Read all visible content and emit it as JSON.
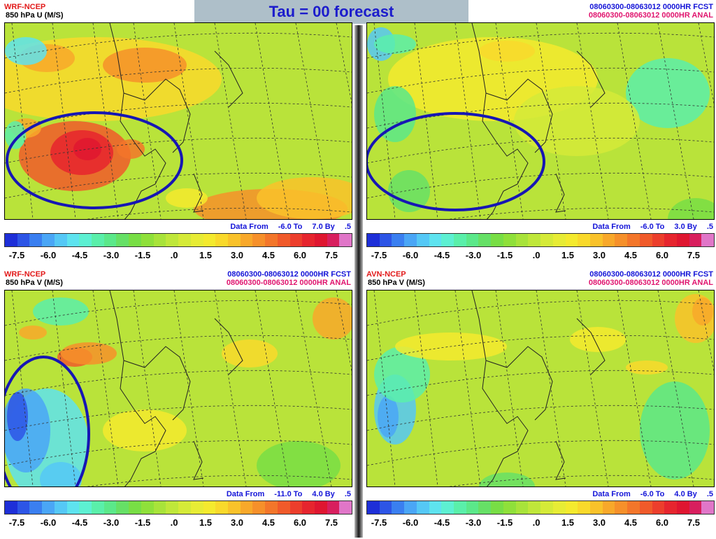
{
  "title": "Tau = 00  forecast",
  "panels": [
    {
      "model": "WRF-NCEP",
      "variable": "850 hPa U (M/S)",
      "forecast_label": "",
      "analysis_label": "",
      "range": {
        "from_label": "Data From",
        "from": "-6.0 To",
        "to": "7.0 By",
        "step": ".5"
      }
    },
    {
      "model": "",
      "variable": "",
      "forecast_label": "08060300-08063012 0000HR FCST",
      "analysis_label": "08060300-08063012 0000HR ANAL",
      "range": {
        "from_label": "Data From",
        "from": "-6.0 To",
        "to": "3.0 By",
        "step": ".5"
      }
    },
    {
      "model": "WRF-NCEP",
      "variable": "850 hPa V (M/S)",
      "forecast_label": "08060300-08063012 0000HR FCST",
      "analysis_label": "08060300-08063012 0000HR ANAL",
      "range": {
        "from_label": "Data From",
        "from": "-11.0 To",
        "to": "4.0 By",
        "step": ".5"
      }
    },
    {
      "model": "AVN-NCEP",
      "variable": "850 hPa V (M/S)",
      "forecast_label": "08060300-08063012 0000HR FCST",
      "analysis_label": "08060300-08063012 0000HR ANAL",
      "range": {
        "from_label": "Data From",
        "from": "-6.0 To",
        "to": "4.0 By",
        "step": ".5"
      }
    }
  ],
  "colorbar": {
    "ticks": [
      "-7.5",
      "-6.0",
      "-4.5",
      "-3.0",
      "-1.5",
      ".0",
      "1.5",
      "3.0",
      "4.5",
      "6.0",
      "7.5"
    ],
    "colors": [
      "#1e2fd8",
      "#2d55e6",
      "#3a7ff0",
      "#4aa6f6",
      "#55c8f6",
      "#5ee3ef",
      "#5df0d2",
      "#5aefaa",
      "#5be88a",
      "#66e066",
      "#78de45",
      "#8fe03a",
      "#a8e33a",
      "#bfe73a",
      "#d5ea38",
      "#e7ec35",
      "#f4ea2e",
      "#f9d92b",
      "#f9c22a",
      "#f8a82a",
      "#f6902a",
      "#f3762a",
      "#f05a2a",
      "#ec3e2c",
      "#e6252e",
      "#df1630",
      "#d81f5e",
      "#e076c8"
    ]
  },
  "highlight_circle_color": "#1616b4"
}
